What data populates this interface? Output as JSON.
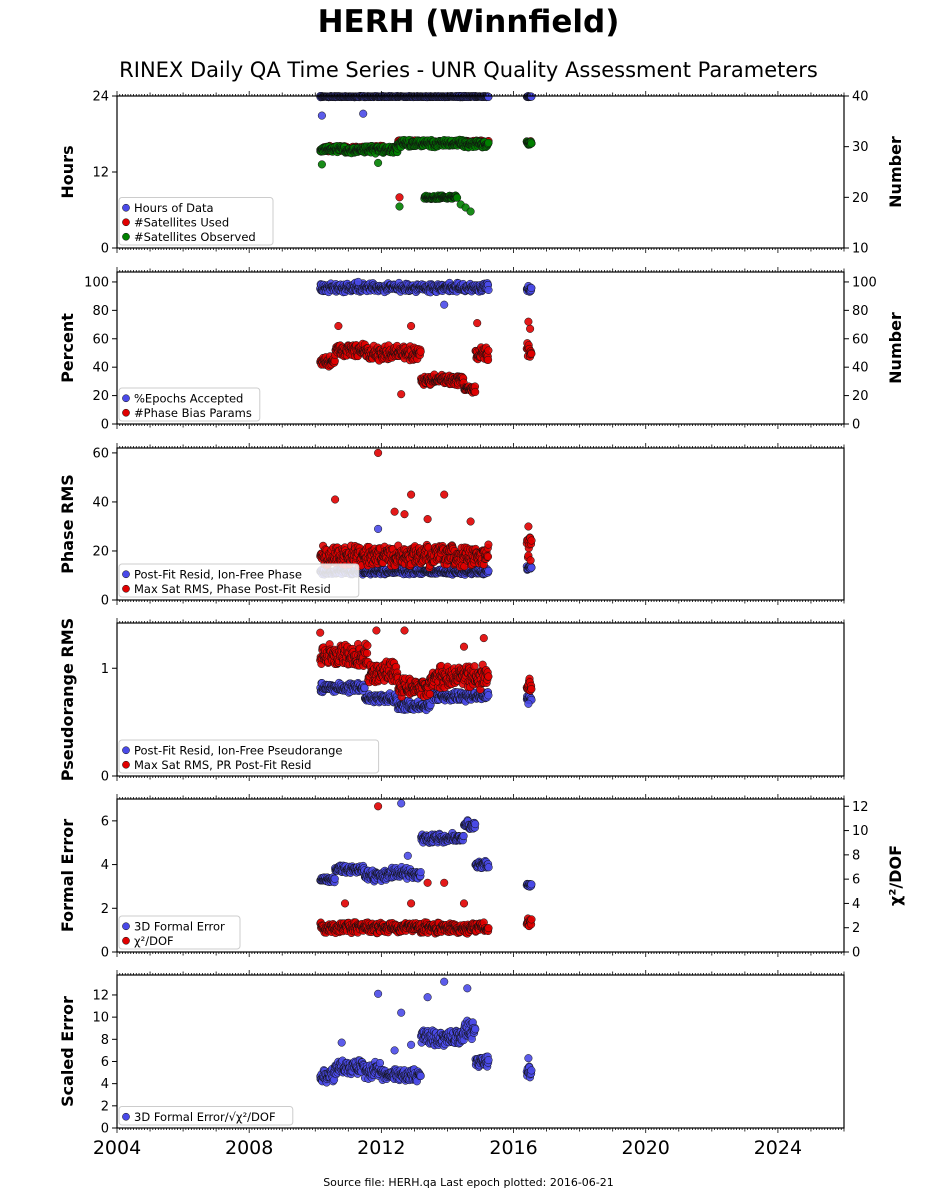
{
  "title": "HERH (Winnfield)",
  "subtitle": "RINEX Daily QA Time Series - UNR Quality Assessment Parameters",
  "footer": "Source file: HERH.qa Last epoch plotted: 2016-06-21",
  "colors": {
    "blue": "#4a4ae8",
    "red": "#e00000",
    "green": "#008000"
  },
  "chart_data": [
    {
      "type": "scatter",
      "ylabel": "Hours",
      "y2label": "Number",
      "xlim": [
        2004,
        2026
      ],
      "ylim": [
        0,
        24
      ],
      "y2lim": [
        10,
        40
      ],
      "yticks": [
        "0",
        "12",
        "24"
      ],
      "y2ticks": [
        "10",
        "20",
        "30",
        "40"
      ],
      "legend_location": "lower-left",
      "series": [
        {
          "name": "Hours of Data",
          "color": "blue",
          "axis": "left",
          "segments": [
            [
              2010.15,
              2015.25,
              23.9,
              0.1
            ],
            [
              2016.4,
              2016.55,
              23.9,
              0.1
            ]
          ],
          "points": [
            [
              2010.2,
              20.9
            ],
            [
              2011.45,
              21.2
            ]
          ]
        },
        {
          "name": "#Satellites Used",
          "color": "red",
          "axis": "right",
          "segments": [
            [
              2010.15,
              2012.5,
              29.6,
              0.6
            ],
            [
              2012.5,
              2015.25,
              30.8,
              0.6
            ],
            [
              2016.4,
              2016.55,
              30.8,
              0.4
            ]
          ],
          "points": [
            [
              2012.55,
              20.0
            ]
          ]
        },
        {
          "name": "#Satellites Observed",
          "color": "green",
          "axis": "right",
          "segments": [
            [
              2010.15,
              2012.5,
              29.4,
              0.8
            ],
            [
              2012.5,
              2015.25,
              30.6,
              0.8
            ],
            [
              2016.4,
              2016.55,
              30.6,
              0.5
            ],
            [
              2013.3,
              2014.3,
              20.0,
              0.4
            ]
          ],
          "points": [
            [
              2012.55,
              18.2
            ],
            [
              2014.4,
              18.6
            ],
            [
              2014.55,
              18.0
            ],
            [
              2014.7,
              17.2
            ],
            [
              2010.2,
              26.5
            ],
            [
              2011.9,
              26.8
            ]
          ]
        }
      ]
    },
    {
      "type": "scatter",
      "ylabel": "Percent",
      "y2label": "Number",
      "xlim": [
        2004,
        2026
      ],
      "ylim": [
        0,
        107
      ],
      "y2lim": [
        0,
        107
      ],
      "yticks": [
        "0",
        "20",
        "40",
        "60",
        "80",
        "100"
      ],
      "y2ticks": [
        "0",
        "20",
        "40",
        "60",
        "80",
        "100"
      ],
      "legend_location": "lower-left",
      "series": [
        {
          "name": "%Epochs Accepted",
          "color": "blue",
          "axis": "left",
          "segments": [
            [
              2010.15,
              2015.25,
              96,
              3.5
            ],
            [
              2016.4,
              2016.55,
              95,
              2.5
            ]
          ],
          "points": [
            [
              2013.9,
              84
            ],
            [
              2011.3,
              100
            ]
          ]
        },
        {
          "name": "#Phase Bias Params",
          "color": "red",
          "axis": "left",
          "segments": [
            [
              2010.15,
              2010.6,
              44,
              4
            ],
            [
              2010.6,
              2011.5,
              52,
              6
            ],
            [
              2011.5,
              2013.2,
              50,
              6
            ],
            [
              2013.2,
              2014.5,
              31,
              4
            ],
            [
              2014.5,
              2014.85,
              25,
              3
            ],
            [
              2014.85,
              2015.25,
              49,
              6
            ],
            [
              2016.4,
              2016.55,
              53,
              6
            ]
          ],
          "points": [
            [
              2010.7,
              69
            ],
            [
              2012.6,
              21
            ],
            [
              2012.9,
              69
            ],
            [
              2014.9,
              71
            ],
            [
              2016.45,
              72
            ],
            [
              2016.5,
              67
            ]
          ]
        }
      ]
    },
    {
      "type": "scatter",
      "ylabel": "Phase RMS",
      "xlim": [
        2004,
        2026
      ],
      "ylim": [
        0,
        62
      ],
      "yticks": [
        "0",
        "20",
        "40",
        "60"
      ],
      "legend_location": "lower-left",
      "series": [
        {
          "name": "Post-Fit Resid, Ion-Free Phase",
          "color": "blue",
          "axis": "left",
          "segments": [
            [
              2010.15,
              2015.25,
              11.5,
              1.2
            ],
            [
              2016.4,
              2016.55,
              13,
              1
            ]
          ],
          "points": [
            [
              2011.9,
              29
            ]
          ]
        },
        {
          "name": "Max Sat RMS, Phase Post-Fit Resid",
          "color": "red",
          "axis": "left",
          "segments": [
            [
              2010.15,
              2015.25,
              18,
              5
            ],
            [
              2016.4,
              2016.55,
              21,
              6
            ]
          ],
          "points": [
            [
              2011.9,
              60
            ],
            [
              2010.6,
              41
            ],
            [
              2012.9,
              43
            ],
            [
              2013.9,
              43
            ],
            [
              2012.4,
              36
            ],
            [
              2013.4,
              33
            ],
            [
              2012.7,
              35
            ],
            [
              2014.7,
              32
            ],
            [
              2016.45,
              30
            ]
          ]
        }
      ]
    },
    {
      "type": "scatter",
      "ylabel": "Pseudorange RMS",
      "xlim": [
        2004,
        2026
      ],
      "ylim": [
        0,
        1.42
      ],
      "yticks": [
        "0",
        "1"
      ],
      "legend_location": "lower-left",
      "series": [
        {
          "name": "Post-Fit Resid, Ion-Free Pseudorange",
          "color": "blue",
          "axis": "left",
          "segments": [
            [
              2010.15,
              2011.5,
              0.82,
              0.05
            ],
            [
              2011.5,
              2012.5,
              0.72,
              0.05
            ],
            [
              2012.5,
              2013.5,
              0.65,
              0.05
            ],
            [
              2013.5,
              2015.25,
              0.74,
              0.05
            ],
            [
              2016.4,
              2016.55,
              0.72,
              0.04
            ]
          ],
          "points": [
            [
              2016.45,
              0.67
            ]
          ]
        },
        {
          "name": "Max Sat RMS, PR Post-Fit Resid",
          "color": "red",
          "axis": "left",
          "segments": [
            [
              2010.15,
              2011.6,
              1.12,
              0.12
            ],
            [
              2011.6,
              2012.5,
              0.95,
              0.12
            ],
            [
              2012.5,
              2013.5,
              0.82,
              0.1
            ],
            [
              2013.5,
              2015.25,
              0.92,
              0.12
            ],
            [
              2016.4,
              2016.55,
              0.82,
              0.1
            ]
          ],
          "points": [
            [
              2012.7,
              1.35
            ],
            [
              2011.85,
              1.35
            ],
            [
              2010.15,
              1.33
            ],
            [
              2014.5,
              1.2
            ],
            [
              2015.1,
              1.28
            ]
          ]
        }
      ]
    },
    {
      "type": "scatter",
      "ylabel": "Formal Error",
      "y2label": "χ²/DOF",
      "xlim": [
        2004,
        2026
      ],
      "ylim": [
        0,
        7
      ],
      "y2lim": [
        0,
        12.6
      ],
      "yticks": [
        "0",
        "2",
        "4",
        "6"
      ],
      "y2ticks": [
        "0",
        "2",
        "4",
        "6",
        "8",
        "10",
        "12"
      ],
      "legend_location": "lower-left",
      "series": [
        {
          "name": "3D Formal Error",
          "color": "blue",
          "axis": "left",
          "segments": [
            [
              2010.15,
              2010.6,
              3.3,
              0.15
            ],
            [
              2010.6,
              2011.5,
              3.8,
              0.2
            ],
            [
              2011.5,
              2012.2,
              3.5,
              0.3
            ],
            [
              2012.2,
              2013.2,
              3.6,
              0.3
            ],
            [
              2013.2,
              2014.5,
              5.2,
              0.25
            ],
            [
              2014.5,
              2014.85,
              5.8,
              0.3
            ],
            [
              2014.85,
              2015.25,
              4.0,
              0.2
            ],
            [
              2016.4,
              2016.55,
              3.1,
              0.15
            ]
          ],
          "points": [
            [
              2012.6,
              6.8
            ],
            [
              2012.8,
              4.4
            ]
          ]
        },
        {
          "name": "χ²/DOF",
          "color": "red",
          "axis": "right",
          "segments": [
            [
              2010.15,
              2015.25,
              2.0,
              0.5
            ],
            [
              2016.4,
              2016.55,
              2.4,
              0.6
            ]
          ],
          "points": [
            [
              2011.9,
              12.0
            ],
            [
              2013.4,
              5.7
            ],
            [
              2013.9,
              5.7
            ],
            [
              2010.9,
              4.0
            ],
            [
              2012.9,
              4.0
            ],
            [
              2014.5,
              4.0
            ]
          ]
        }
      ]
    },
    {
      "type": "scatter",
      "ylabel": "Scaled Error",
      "xlim": [
        2004,
        2026
      ],
      "ylim": [
        0,
        13.8
      ],
      "yticks": [
        "0",
        "2",
        "4",
        "6",
        "8",
        "10",
        "12"
      ],
      "xticks": [
        "2004",
        "2008",
        "2012",
        "2016",
        "2020",
        "2024"
      ],
      "legend_location": "lower-left",
      "series": [
        {
          "name": "3D Formal Error/√χ²/DOF",
          "color": "blue",
          "axis": "left",
          "segments": [
            [
              2010.15,
              2010.6,
              4.7,
              0.7
            ],
            [
              2010.6,
              2011.5,
              5.5,
              0.8
            ],
            [
              2011.5,
              2012.0,
              5.2,
              0.8
            ],
            [
              2012.0,
              2013.2,
              4.8,
              0.6
            ],
            [
              2013.2,
              2014.5,
              8.2,
              0.8
            ],
            [
              2014.5,
              2014.85,
              9.0,
              1.0
            ],
            [
              2014.85,
              2015.25,
              6.0,
              0.6
            ],
            [
              2016.4,
              2016.55,
              5.0,
              0.6
            ]
          ],
          "points": [
            [
              2011.9,
              12.1
            ],
            [
              2013.9,
              13.2
            ],
            [
              2014.6,
              12.6
            ],
            [
              2013.4,
              11.8
            ],
            [
              2012.6,
              10.4
            ],
            [
              2012.4,
              7.0
            ],
            [
              2012.9,
              7.5
            ],
            [
              2010.8,
              7.7
            ],
            [
              2016.45,
              6.3
            ]
          ]
        }
      ]
    }
  ]
}
